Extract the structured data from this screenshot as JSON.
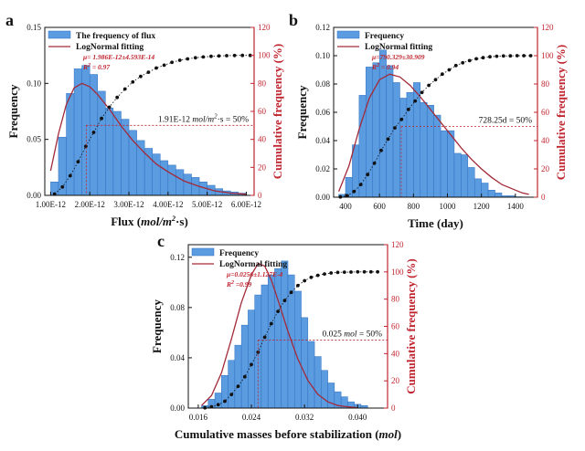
{
  "colors": {
    "bar": "#5b9be0",
    "bar_edge": "#2f6fc0",
    "fit": "#a32a38",
    "right_axis": "#c0242f",
    "cumulative": "#111111",
    "guide": "#c0242f"
  },
  "chart_data": [
    {
      "id": "a",
      "panel_label": "a",
      "type": "bar",
      "xlabel_text": "Flux (",
      "xlabel_unit": "mol/m",
      "xlabel_sup": "2",
      "xlabel_tail": "·s)",
      "ylabel": "Frequency",
      "ylabel_right": "Cumulative frequency (%)",
      "xlim": [
        0.85,
        6.2
      ],
      "ylim": [
        0,
        0.15
      ],
      "ylim_right": [
        0,
        120
      ],
      "xticks": [
        1,
        2,
        3,
        4,
        5,
        6
      ],
      "xtick_labels": [
        "1.00E-12",
        "2.00E-12",
        "3.00E-12",
        "4.00E-12",
        "5.00E-12",
        "6.00E-12"
      ],
      "yticks": [
        0,
        0.05,
        0.1,
        0.15
      ],
      "ytick_labels": [
        "0.00",
        "0.05",
        "0.10",
        "0.15"
      ],
      "yticks_right": [
        0,
        20,
        40,
        60,
        80,
        100,
        120
      ],
      "bin_start": 1.0,
      "bin_width": 0.2,
      "values": [
        0.012,
        0.052,
        0.091,
        0.113,
        0.116,
        0.108,
        0.093,
        0.078,
        0.075,
        0.068,
        0.058,
        0.049,
        0.042,
        0.037,
        0.031,
        0.027,
        0.023,
        0.019,
        0.016,
        0.012,
        0.009,
        0.006,
        0.004,
        0.003,
        0.002
      ],
      "fit_x": [
        1.0,
        1.2,
        1.4,
        1.6,
        1.8,
        2.0,
        2.2,
        2.5,
        2.8,
        3.1,
        3.4,
        3.7,
        4.0,
        4.4,
        4.8,
        5.2,
        5.6,
        6.0
      ],
      "fit_y": [
        0.022,
        0.055,
        0.081,
        0.096,
        0.1,
        0.097,
        0.09,
        0.077,
        0.062,
        0.049,
        0.038,
        0.028,
        0.021,
        0.013,
        0.008,
        0.004,
        0.002,
        0.001
      ],
      "cum_x": [
        1.1,
        1.3,
        1.5,
        1.7,
        1.9,
        2.1,
        2.3,
        2.5,
        2.7,
        2.9,
        3.1,
        3.3,
        3.5,
        3.7,
        3.9,
        4.1,
        4.3,
        4.5,
        4.7,
        4.9,
        5.1,
        5.3,
        5.5,
        5.7,
        5.9,
        6.1
      ],
      "cum_y": [
        1,
        6,
        14,
        24,
        35,
        45,
        55,
        63,
        70,
        76,
        81,
        85,
        88,
        91,
        93,
        95,
        96.5,
        97.5,
        98.3,
        98.9,
        99.3,
        99.6,
        99.8,
        99.9,
        100,
        100
      ],
      "median_x": 1.91,
      "median_label": "1.91E-12 ",
      "median_unit": "mol/m",
      "median_sup": "2",
      "median_tail": "·s = 50%",
      "legend_bar": "The frequency of flux",
      "legend_fit": "LogNormal fitting",
      "stat_mu": "μ= 1.986E-12±4.593E-14",
      "stat_r2": "R",
      "stat_r2_sup": "2",
      "stat_r2_val": " = 0.97"
    },
    {
      "id": "b",
      "panel_label": "b",
      "type": "bar",
      "xlabel_text": "Time (day)",
      "ylabel": "Frequency",
      "ylabel_right": "Cumulative frequency (%)",
      "xlim": [
        330,
        1530
      ],
      "ylim": [
        0,
        0.12
      ],
      "ylim_right": [
        0,
        120
      ],
      "xticks": [
        400,
        600,
        800,
        1000,
        1200,
        1400
      ],
      "xtick_labels": [
        "400",
        "600",
        "800",
        "1000",
        "1200",
        "1400"
      ],
      "yticks": [
        0,
        0.02,
        0.04,
        0.06,
        0.08,
        0.1,
        0.12
      ],
      "ytick_labels": [
        "0.00",
        "0.02",
        "0.04",
        "0.06",
        "0.08",
        "0.10",
        "0.12"
      ],
      "yticks_right": [
        0,
        20,
        40,
        60,
        80,
        100,
        120
      ],
      "bin_start": 360,
      "bin_width": 40,
      "values": [
        0.002,
        0.014,
        0.037,
        0.072,
        0.092,
        0.095,
        0.104,
        0.093,
        0.081,
        0.07,
        0.074,
        0.081,
        0.067,
        0.065,
        0.058,
        0.047,
        0.047,
        0.031,
        0.03,
        0.021,
        0.013,
        0.01,
        0.005,
        0.003,
        0.001,
        0.001,
        0.0003,
        0.0002
      ],
      "fit_x": [
        360,
        420,
        480,
        540,
        600,
        660,
        720,
        780,
        840,
        900,
        960,
        1020,
        1080,
        1140,
        1200,
        1260,
        1320,
        1380,
        1440,
        1480
      ],
      "fit_y": [
        0.004,
        0.022,
        0.048,
        0.07,
        0.083,
        0.087,
        0.085,
        0.079,
        0.071,
        0.062,
        0.053,
        0.044,
        0.035,
        0.027,
        0.02,
        0.014,
        0.009,
        0.006,
        0.003,
        0.002
      ],
      "cum_x": [
        370,
        410,
        450,
        490,
        530,
        570,
        610,
        650,
        690,
        730,
        770,
        810,
        850,
        890,
        930,
        970,
        1010,
        1050,
        1090,
        1130,
        1170,
        1210,
        1250,
        1290,
        1330,
        1370,
        1410,
        1450,
        1490
      ],
      "cum_y": [
        0.2,
        1,
        4,
        9,
        16,
        24,
        33,
        41,
        49,
        55,
        62,
        68,
        74,
        79,
        83,
        87,
        90,
        93,
        95,
        96.5,
        97.8,
        98.6,
        99.2,
        99.6,
        99.8,
        99.9,
        100,
        100,
        100
      ],
      "median_x": 728.25,
      "median_label": "728.25d = 50%",
      "legend_bar": "Frequency",
      "legend_fit": "LogNormal fitting",
      "stat_mu": "μ=790.329±30.909",
      "stat_r2": "R",
      "stat_r2_sup": "2",
      "stat_r2_val": " = 0.94"
    },
    {
      "id": "c",
      "panel_label": "c",
      "type": "bar",
      "xlabel_text": "Cumulative masses before stabilization (",
      "xlabel_unit": "mol",
      "xlabel_tail": ")",
      "ylabel": "Frequency",
      "ylabel_right": "Cumulative frequency (%)",
      "xlim": [
        0.0145,
        0.0445
      ],
      "ylim": [
        0,
        0.13
      ],
      "ylim_right": [
        0,
        120
      ],
      "xticks": [
        0.016,
        0.024,
        0.032,
        0.04
      ],
      "xtick_labels": [
        "0.016",
        "0.024",
        "0.032",
        "0.040"
      ],
      "yticks": [
        0,
        0.04,
        0.08,
        0.12
      ],
      "ytick_labels": [
        "0.00",
        "0.04",
        "0.08",
        "0.12"
      ],
      "yticks_right": [
        0,
        20,
        40,
        60,
        80,
        100,
        120
      ],
      "bin_start": 0.0165,
      "bin_width": 0.001,
      "values": [
        0.002,
        0.007,
        0.012,
        0.026,
        0.038,
        0.05,
        0.066,
        0.078,
        0.09,
        0.098,
        0.106,
        0.111,
        0.117,
        0.106,
        0.093,
        0.072,
        0.053,
        0.041,
        0.03,
        0.02,
        0.013,
        0.009,
        0.005,
        0.003,
        0.002
      ],
      "fit_x": [
        0.0165,
        0.018,
        0.0195,
        0.021,
        0.0225,
        0.024,
        0.025,
        0.026,
        0.027,
        0.028,
        0.0295,
        0.031,
        0.0325,
        0.034,
        0.0355,
        0.037,
        0.0385,
        0.04
      ],
      "fit_y": [
        0.002,
        0.01,
        0.028,
        0.055,
        0.084,
        0.106,
        0.115,
        0.113,
        0.102,
        0.086,
        0.061,
        0.039,
        0.022,
        0.011,
        0.005,
        0.002,
        0.001,
        0.0003
      ],
      "cum_x": [
        0.017,
        0.018,
        0.019,
        0.02,
        0.021,
        0.022,
        0.023,
        0.024,
        0.025,
        0.026,
        0.027,
        0.028,
        0.029,
        0.03,
        0.031,
        0.032,
        0.033,
        0.034,
        0.035,
        0.036,
        0.037,
        0.038,
        0.039,
        0.04,
        0.041,
        0.042,
        0.043
      ],
      "cum_y": [
        0.2,
        1,
        2.5,
        5,
        10,
        16,
        23,
        32,
        41,
        52,
        62,
        71,
        79,
        85,
        90,
        93.5,
        96,
        97.5,
        98.5,
        99.2,
        99.6,
        99.8,
        99.9,
        100,
        100,
        100,
        100
      ],
      "median_x": 0.025,
      "median_label": "0.025 ",
      "median_unit": "mol",
      "median_tail": " = 50%",
      "legend_bar": "Frequency",
      "legend_fit": "LogNormal fitting",
      "stat_mu": "μ=0.0256±1.127E-4",
      "stat_r2": "R",
      "stat_r2_sup": "2",
      "stat_r2_val": " =0.99"
    }
  ]
}
